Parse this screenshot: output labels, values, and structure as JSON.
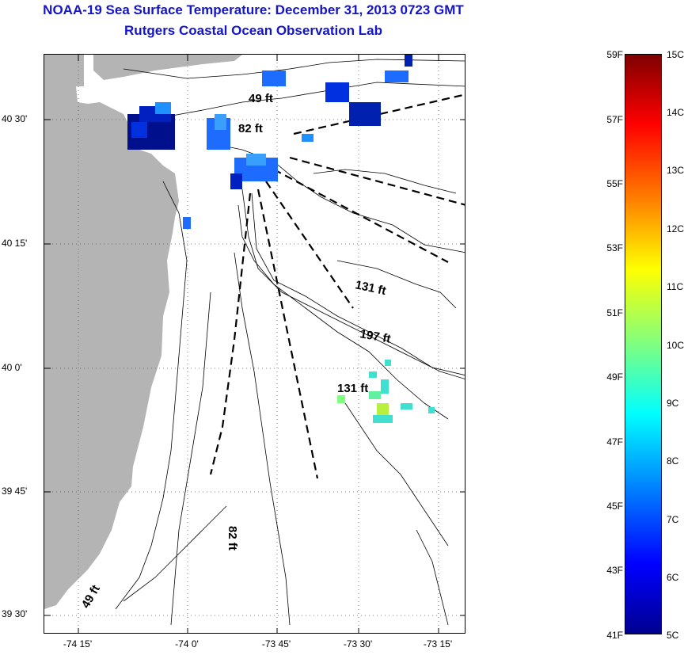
{
  "header": {
    "title": "NOAA-19 Sea Surface Temperature:  December 31, 2013 0723 GMT",
    "subtitle": "Rutgers Coastal Ocean Observation Lab"
  },
  "map": {
    "lat_labels": [
      "40 30'",
      "40 15'",
      "40 0'",
      "39 45'",
      "39 30'"
    ],
    "lon_labels": [
      "-74 15'",
      "-74 0'",
      "-73 45'",
      "-73 30'",
      "-73 15'"
    ],
    "depth_labels": [
      "49 ft",
      "82 ft",
      "131 ft",
      "197 ft",
      "131 ft",
      "82 ft",
      "49 ft"
    ],
    "colors": {
      "land": "#b4b4b4",
      "grid": "#555555",
      "contour": "#000000"
    }
  },
  "colorbar": {
    "fahrenheit": [
      "59F",
      "57F",
      "55F",
      "53F",
      "51F",
      "49F",
      "47F",
      "45F",
      "43F",
      "41F"
    ],
    "celsius": [
      "15C",
      "14C",
      "13C",
      "12C",
      "11C",
      "10C",
      "9C",
      "8C",
      "7C",
      "6C",
      "5C"
    ]
  }
}
